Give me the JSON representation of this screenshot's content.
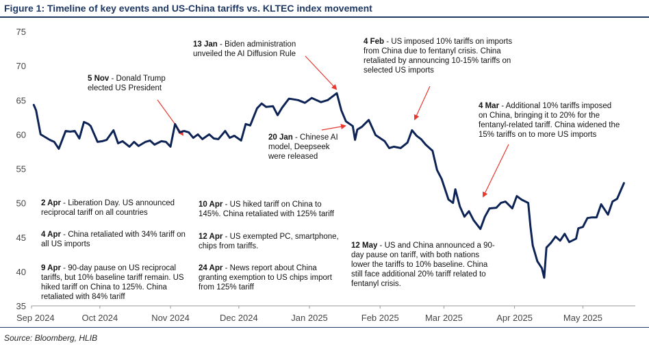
{
  "title": "Figure 1: Timeline of key events and US-China tariffs vs. KLTEC index movement",
  "source": "Source: Bloomberg, HLIB",
  "colors": {
    "line": "#0d2355",
    "title": "#1f3864",
    "arrow": "#e8372f",
    "axis": "#999999"
  },
  "chart_data": {
    "type": "line",
    "x_tick_labels": [
      "Sep 2024",
      "Oct 2024",
      "Nov 2024",
      "Dec 2024",
      "Jan 2025",
      "Feb 2025",
      "Mar 2025",
      "Apr 2025",
      "May 2025"
    ],
    "x_tick_dates": [
      "2024-09-01",
      "2024-10-01",
      "2024-11-01",
      "2024-12-01",
      "2025-01-01",
      "2025-02-01",
      "2025-03-01",
      "2025-04-01",
      "2025-05-01"
    ],
    "ylim": [
      35,
      75
    ],
    "y_ticks": [
      35,
      40,
      45,
      50,
      55,
      60,
      65,
      70,
      75
    ],
    "grid": false,
    "series": [
      {
        "values": [
          [
            "2024-09-02",
            64.3
          ],
          [
            "2024-09-03",
            63.5
          ],
          [
            "2024-09-05",
            60.0
          ],
          [
            "2024-09-09",
            59.2
          ],
          [
            "2024-09-11",
            58.9
          ],
          [
            "2024-09-13",
            57.9
          ],
          [
            "2024-09-16",
            60.5
          ],
          [
            "2024-09-18",
            60.4
          ],
          [
            "2024-09-20",
            60.5
          ],
          [
            "2024-09-22",
            59.4
          ],
          [
            "2024-09-24",
            61.8
          ],
          [
            "2024-09-26",
            61.5
          ],
          [
            "2024-09-27",
            61.2
          ],
          [
            "2024-09-30",
            58.9
          ],
          [
            "2024-10-02",
            59.0
          ],
          [
            "2024-10-04",
            59.2
          ],
          [
            "2024-10-07",
            60.6
          ],
          [
            "2024-10-09",
            58.7
          ],
          [
            "2024-10-11",
            59.0
          ],
          [
            "2024-10-14",
            58.2
          ],
          [
            "2024-10-16",
            58.9
          ],
          [
            "2024-10-18",
            58.3
          ],
          [
            "2024-10-21",
            58.9
          ],
          [
            "2024-10-23",
            59.1
          ],
          [
            "2024-10-25",
            58.5
          ],
          [
            "2024-10-28",
            59.0
          ],
          [
            "2024-10-30",
            58.9
          ],
          [
            "2024-11-01",
            58.2
          ],
          [
            "2024-11-03",
            61.5
          ],
          [
            "2024-11-05",
            60.3
          ],
          [
            "2024-11-07",
            60.5
          ],
          [
            "2024-11-09",
            60.3
          ],
          [
            "2024-11-11",
            59.5
          ],
          [
            "2024-11-13",
            60.0
          ],
          [
            "2024-11-15",
            59.3
          ],
          [
            "2024-11-18",
            60.0
          ],
          [
            "2024-11-20",
            59.4
          ],
          [
            "2024-11-22",
            59.3
          ],
          [
            "2024-11-25",
            60.5
          ],
          [
            "2024-11-27",
            59.5
          ],
          [
            "2024-11-29",
            59.8
          ],
          [
            "2024-12-02",
            59.1
          ],
          [
            "2024-12-04",
            61.5
          ],
          [
            "2024-12-06",
            61.3
          ],
          [
            "2024-12-09",
            63.8
          ],
          [
            "2024-12-11",
            64.5
          ],
          [
            "2024-12-13",
            64.0
          ],
          [
            "2024-12-16",
            64.1
          ],
          [
            "2024-12-18",
            62.8
          ],
          [
            "2024-12-20",
            63.9
          ],
          [
            "2024-12-23",
            65.2
          ],
          [
            "2024-12-25",
            65.1
          ],
          [
            "2024-12-27",
            65.0
          ],
          [
            "2024-12-30",
            64.6
          ],
          [
            "2025-01-02",
            65.3
          ],
          [
            "2025-01-06",
            64.7
          ],
          [
            "2025-01-09",
            65.0
          ],
          [
            "2025-01-13",
            66.0
          ],
          [
            "2025-01-15",
            63.5
          ],
          [
            "2025-01-17",
            61.9
          ],
          [
            "2025-01-20",
            61.2
          ],
          [
            "2025-01-21",
            59.2
          ],
          [
            "2025-01-22",
            60.7
          ],
          [
            "2025-01-24",
            61.1
          ],
          [
            "2025-01-27",
            62.1
          ],
          [
            "2025-01-30",
            59.9
          ],
          [
            "2025-02-03",
            59.0
          ],
          [
            "2025-02-05",
            58.0
          ],
          [
            "2025-02-07",
            58.2
          ],
          [
            "2025-02-10",
            58.0
          ],
          [
            "2025-02-13",
            58.8
          ],
          [
            "2025-02-15",
            60.6
          ],
          [
            "2025-02-17",
            59.8
          ],
          [
            "2025-02-19",
            59.3
          ],
          [
            "2025-02-21",
            58.5
          ],
          [
            "2025-02-24",
            57.6
          ],
          [
            "2025-02-26",
            54.8
          ],
          [
            "2025-02-28",
            53.5
          ],
          [
            "2025-03-03",
            50.5
          ],
          [
            "2025-03-05",
            50.0
          ],
          [
            "2025-03-06",
            52.0
          ],
          [
            "2025-03-08",
            49.5
          ],
          [
            "2025-03-10",
            48.0
          ],
          [
            "2025-03-12",
            48.8
          ],
          [
            "2025-03-14",
            47.5
          ],
          [
            "2025-03-17",
            46.2
          ],
          [
            "2025-03-19",
            48.0
          ],
          [
            "2025-03-21",
            49.2
          ],
          [
            "2025-03-24",
            49.3
          ],
          [
            "2025-03-26",
            50.0
          ],
          [
            "2025-03-28",
            50.2
          ],
          [
            "2025-03-31",
            49.2
          ],
          [
            "2025-04-02",
            51.0
          ],
          [
            "2025-04-04",
            50.5
          ],
          [
            "2025-04-07",
            50.0
          ],
          [
            "2025-04-08",
            46.5
          ],
          [
            "2025-04-09",
            43.8
          ],
          [
            "2025-04-11",
            41.5
          ],
          [
            "2025-04-13",
            40.5
          ],
          [
            "2025-04-14",
            39.1
          ],
          [
            "2025-04-15",
            43.5
          ],
          [
            "2025-04-17",
            44.2
          ],
          [
            "2025-04-19",
            45.1
          ],
          [
            "2025-04-21",
            44.5
          ],
          [
            "2025-04-23",
            45.5
          ],
          [
            "2025-04-25",
            44.3
          ],
          [
            "2025-04-28",
            44.8
          ],
          [
            "2025-04-29",
            46.3
          ],
          [
            "2025-05-01",
            46.5
          ],
          [
            "2025-05-03",
            47.8
          ],
          [
            "2025-05-05",
            47.9
          ],
          [
            "2025-05-07",
            47.9
          ],
          [
            "2025-05-09",
            49.8
          ],
          [
            "2025-05-12",
            48.3
          ],
          [
            "2025-05-14",
            50.2
          ],
          [
            "2025-05-16",
            50.6
          ],
          [
            "2025-05-19",
            52.9
          ]
        ]
      }
    ]
  },
  "annotations": [
    {
      "date": "5 Nov",
      "text": " - Donald Trump elected US President"
    },
    {
      "date": "13 Jan",
      "text": " - Biden administration unveiled the AI Diffusion Rule"
    },
    {
      "date": "20 Jan",
      "text": " - Chinese AI model, Deepseek were released"
    },
    {
      "date": "4 Feb",
      "text": " - US imposed 10% tariffs on imports from China due to fentanyl crisis. China retaliated by announcing 10-15% tariffs on selected US imports"
    },
    {
      "date": "4 Mar",
      "text": " - Additional 10% tariffs imposed on China, bringing it to 20% for the fentanyl-related tariff. China widened the 15% tariffs on to more US imports"
    },
    {
      "date": "2 Apr",
      "text": " - Liberation Day. US announced reciprocal tariff on all countries"
    },
    {
      "date": "4 Apr",
      "text": " - China retaliated with 34% tariff on all US imports"
    },
    {
      "date": "9 Apr",
      "text": " - 90-day pause on US reciprocal tariffs, but 10% baseline tariff remain. US hiked tariff on China to 125%. China retaliated with 84% tariff"
    },
    {
      "date": "10 Apr",
      "text": " - US hiked tariff on China to 145%. China retaliated with 125% tariff"
    },
    {
      "date": "12 Apr",
      "text": " - US exempted PC, smartphone, chips from tariffs."
    },
    {
      "date": "24 Apr",
      "text": " - News report about China granting exemption to US chips import from 125% tariff"
    },
    {
      "date": "12 May",
      "text": " - US and China announced a 90-day pause on tariff, with both nations lower the tariffs to 10% baseline. China still face additional 20% tariff related to fentanyl crisis."
    }
  ]
}
